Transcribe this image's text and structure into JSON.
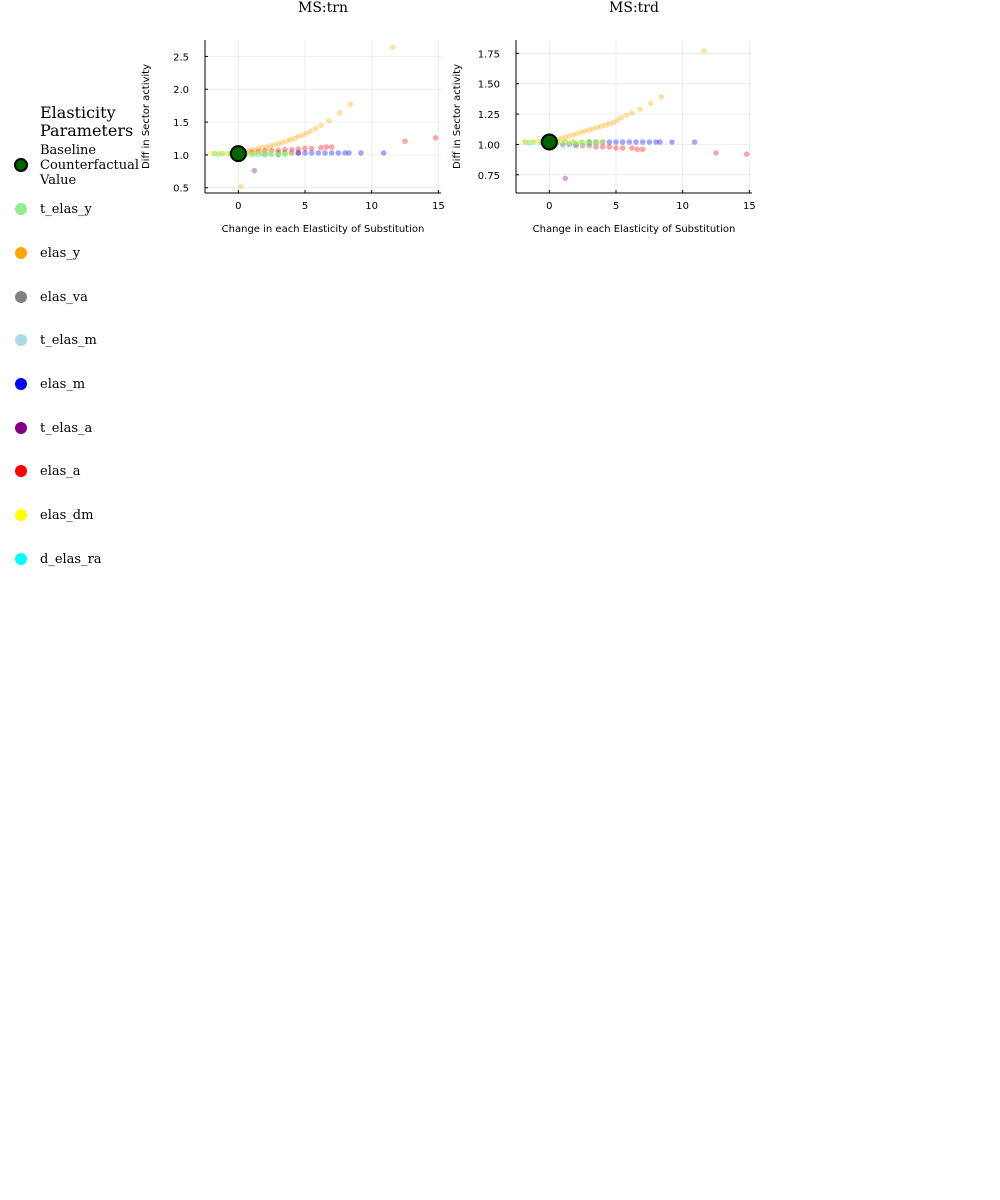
{
  "legend": {
    "title_lines": [
      "Elasticity",
      "Parameters"
    ],
    "placement": "left",
    "entries": [
      {
        "label_lines": [
          "Baseline",
          "Counterfactual",
          "Value"
        ],
        "color": "#006400",
        "stroke": "#000000"
      },
      {
        "label_lines": [
          "t_elas_y"
        ],
        "color": "#90ee90"
      },
      {
        "label_lines": [
          "elas_y"
        ],
        "color": "#ffa500"
      },
      {
        "label_lines": [
          "elas_va"
        ],
        "color": "#808080"
      },
      {
        "label_lines": [
          "t_elas_m"
        ],
        "color": "#add8e6"
      },
      {
        "label_lines": [
          "elas_m"
        ],
        "color": "#0000ff"
      },
      {
        "label_lines": [
          "t_elas_a"
        ],
        "color": "#800080"
      },
      {
        "label_lines": [
          "elas_a"
        ],
        "color": "#ff0000"
      },
      {
        "label_lines": [
          "elas_dm"
        ],
        "color": "#ffff00"
      },
      {
        "label_lines": [
          "d_elas_ra"
        ],
        "color": "#00ffff"
      }
    ]
  },
  "chart_data": [
    {
      "type": "scatter",
      "title": "MS:trn",
      "xlabel": "Change in each Elasticity of Substitution",
      "ylabel": "Diff in Sector activity",
      "xlim": [
        -2.5,
        15.2
      ],
      "ylim": [
        0.42,
        2.75
      ],
      "xticks": [
        0,
        5,
        10,
        15
      ],
      "yticks": [
        0.5,
        1.0,
        1.5,
        2.0,
        2.5
      ],
      "ytick_labels": [
        "0.5",
        "1.0",
        "1.5",
        "2.0",
        "2.5"
      ],
      "grid": true,
      "baseline": {
        "x": 0,
        "y": 1.02
      },
      "series": [
        {
          "key": "elas_y",
          "color": "#ffa500",
          "x": [
            0.3,
            0.6,
            0.9,
            1.2,
            1.5,
            1.8,
            2.1,
            2.4,
            2.7,
            3.0,
            3.3,
            3.6,
            3.9,
            4.2,
            4.5,
            4.8,
            5.1,
            5.4,
            5.8,
            6.2,
            6.8,
            7.6,
            8.4,
            11.6,
            0.2
          ],
          "y": [
            1.04,
            1.06,
            1.07,
            1.08,
            1.1,
            1.11,
            1.12,
            1.14,
            1.15,
            1.17,
            1.19,
            1.21,
            1.23,
            1.25,
            1.28,
            1.3,
            1.33,
            1.36,
            1.4,
            1.45,
            1.52,
            1.64,
            1.77,
            2.64,
            0.52
          ]
        },
        {
          "key": "elas_a",
          "color": "#ff0000",
          "x": [
            0.5,
            1.0,
            1.5,
            2.0,
            2.5,
            3.0,
            3.5,
            4.0,
            4.5,
            5.0,
            5.5,
            6.2,
            6.6,
            7.0,
            12.5,
            14.8
          ],
          "y": [
            1.03,
            1.04,
            1.05,
            1.06,
            1.07,
            1.07,
            1.08,
            1.08,
            1.09,
            1.1,
            1.1,
            1.11,
            1.12,
            1.12,
            1.21,
            1.26
          ]
        },
        {
          "key": "elas_m",
          "color": "#0000ff",
          "x": [
            3.0,
            3.5,
            4.0,
            4.5,
            5.0,
            5.5,
            6.0,
            6.5,
            7.0,
            7.5,
            8.0,
            8.3,
            9.2,
            10.9
          ],
          "y": [
            1.03,
            1.03,
            1.03,
            1.03,
            1.03,
            1.03,
            1.03,
            1.03,
            1.03,
            1.03,
            1.03,
            1.03,
            1.03,
            1.03
          ]
        },
        {
          "key": "t_elas_a",
          "color": "#800080",
          "x": [
            1.2,
            2.0,
            3.0,
            4.5
          ],
          "y": [
            0.76,
            1.01,
            1.02,
            1.03
          ]
        },
        {
          "key": "t_elas_m",
          "color": "#add8e6",
          "x": [
            0.5,
            1.0,
            1.5,
            2.0,
            2.5,
            3.0,
            3.5
          ],
          "y": [
            1.0,
            1.0,
            1.0,
            1.0,
            1.0,
            1.0,
            1.01
          ]
        },
        {
          "key": "elas_va",
          "color": "#808080",
          "x": [
            -1.8,
            -1.2,
            -0.6,
            0.6,
            1.2,
            1.8,
            2.4,
            3.0
          ],
          "y": [
            1.02,
            1.02,
            1.02,
            1.02,
            1.02,
            1.02,
            1.02,
            1.0
          ]
        },
        {
          "key": "t_elas_y",
          "color": "#90ee90",
          "x": [
            -1.5,
            -0.8,
            0.6,
            1.2,
            1.8,
            2.4,
            3.0,
            3.6
          ],
          "y": [
            1.02,
            1.02,
            1.02,
            1.02,
            1.02,
            1.02,
            1.02,
            1.02
          ]
        },
        {
          "key": "d_elas_ra",
          "color": "#00ffff",
          "x": [
            -1.5,
            -0.5,
            0.5,
            1.0,
            1.5,
            2.0,
            2.5,
            3.0,
            3.5
          ],
          "y": [
            1.01,
            1.01,
            1.01,
            1.01,
            1.01,
            1.01,
            1.01,
            1.01,
            1.01
          ]
        },
        {
          "key": "elas_dm",
          "color": "#ffff00",
          "x": [
            -2.0,
            -1.6,
            -1.2,
            -0.8,
            -0.4,
            0.4,
            0.8,
            1.2,
            1.6,
            2.0,
            2.4,
            2.8,
            3.2,
            3.6,
            4.0
          ],
          "y": [
            1.02,
            1.02,
            1.02,
            1.02,
            1.02,
            1.02,
            1.02,
            1.02,
            1.02,
            1.02,
            1.02,
            1.02,
            1.02,
            1.02,
            1.02
          ]
        }
      ]
    },
    {
      "type": "scatter",
      "title": "MS:trd",
      "xlabel": "Change in each Elasticity of Substitution",
      "ylabel": "Diff in Sector activity",
      "xlim": [
        -2.5,
        15.2
      ],
      "ylim": [
        0.6,
        1.86
      ],
      "xticks": [
        0,
        5,
        10,
        15
      ],
      "yticks": [
        0.75,
        1.0,
        1.25,
        1.5,
        1.75
      ],
      "ytick_labels": [
        "0.75",
        "1.00",
        "1.25",
        "1.50",
        "1.75"
      ],
      "grid": true,
      "baseline": {
        "x": 0,
        "y": 1.02
      },
      "series": [
        {
          "key": "elas_y",
          "color": "#ffa500",
          "x": [
            0.3,
            0.6,
            0.9,
            1.2,
            1.5,
            1.8,
            2.1,
            2.4,
            2.7,
            3.0,
            3.3,
            3.6,
            3.9,
            4.2,
            4.5,
            4.8,
            5.1,
            5.4,
            5.8,
            6.2,
            6.8,
            7.6,
            8.4,
            11.6
          ],
          "y": [
            1.03,
            1.04,
            1.05,
            1.06,
            1.07,
            1.08,
            1.09,
            1.1,
            1.11,
            1.12,
            1.13,
            1.14,
            1.15,
            1.16,
            1.17,
            1.18,
            1.2,
            1.22,
            1.24,
            1.26,
            1.29,
            1.34,
            1.39,
            1.77
          ]
        },
        {
          "key": "elas_a",
          "color": "#ff0000",
          "x": [
            0.5,
            1.0,
            1.5,
            2.0,
            2.5,
            3.0,
            3.5,
            4.0,
            4.5,
            5.0,
            5.5,
            6.2,
            6.6,
            7.0,
            12.5,
            14.8
          ],
          "y": [
            1.01,
            1.0,
            1.0,
            0.99,
            0.99,
            0.99,
            0.98,
            0.98,
            0.98,
            0.97,
            0.97,
            0.97,
            0.96,
            0.96,
            0.93,
            0.92
          ]
        },
        {
          "key": "elas_m",
          "color": "#0000ff",
          "x": [
            3.0,
            3.5,
            4.0,
            4.5,
            5.0,
            5.5,
            6.0,
            6.5,
            7.0,
            7.5,
            8.0,
            8.3,
            9.2,
            10.9
          ],
          "y": [
            1.02,
            1.02,
            1.02,
            1.02,
            1.02,
            1.02,
            1.02,
            1.02,
            1.02,
            1.02,
            1.02,
            1.02,
            1.02,
            1.02
          ]
        },
        {
          "key": "t_elas_a",
          "color": "#800080",
          "x": [
            1.2,
            2.0,
            3.0
          ],
          "y": [
            0.72,
            1.0,
            1.01
          ]
        },
        {
          "key": "t_elas_m",
          "color": "#add8e6",
          "x": [
            0.5,
            1.0,
            1.5,
            2.0,
            2.5,
            3.0
          ],
          "y": [
            0.99,
            0.98,
            0.99,
            0.99,
            1.0,
            1.0
          ]
        },
        {
          "key": "elas_va",
          "color": "#808080",
          "x": [
            -1.8,
            -1.2,
            -0.6,
            0.6,
            1.2,
            1.8,
            2.4,
            3.0
          ],
          "y": [
            1.02,
            1.02,
            1.02,
            1.02,
            1.02,
            1.02,
            1.02,
            1.02
          ]
        },
        {
          "key": "t_elas_y",
          "color": "#90ee90",
          "x": [
            -1.5,
            -0.8,
            0.6,
            1.2,
            1.8,
            2.4,
            3.0,
            3.6
          ],
          "y": [
            1.02,
            1.02,
            1.02,
            1.02,
            1.02,
            1.02,
            1.02,
            1.02
          ]
        },
        {
          "key": "d_elas_ra",
          "color": "#00ffff",
          "x": [
            -1.5,
            -0.5,
            0.5,
            1.0,
            1.5,
            2.0,
            2.5,
            3.0,
            3.5
          ],
          "y": [
            1.01,
            1.01,
            1.01,
            1.01,
            1.01,
            1.01,
            1.01,
            1.01,
            1.01
          ]
        },
        {
          "key": "elas_dm",
          "color": "#ffff00",
          "x": [
            -2.0,
            -1.6,
            -1.2,
            -0.8,
            -0.4,
            0.4,
            0.8,
            1.2,
            1.6,
            2.0,
            2.4,
            2.8,
            3.2,
            3.6,
            4.0
          ],
          "y": [
            1.02,
            1.02,
            1.02,
            1.02,
            1.02,
            1.02,
            1.02,
            1.02,
            1.02,
            1.02,
            1.02,
            1.02,
            1.02,
            1.02,
            1.02
          ]
        }
      ]
    }
  ]
}
